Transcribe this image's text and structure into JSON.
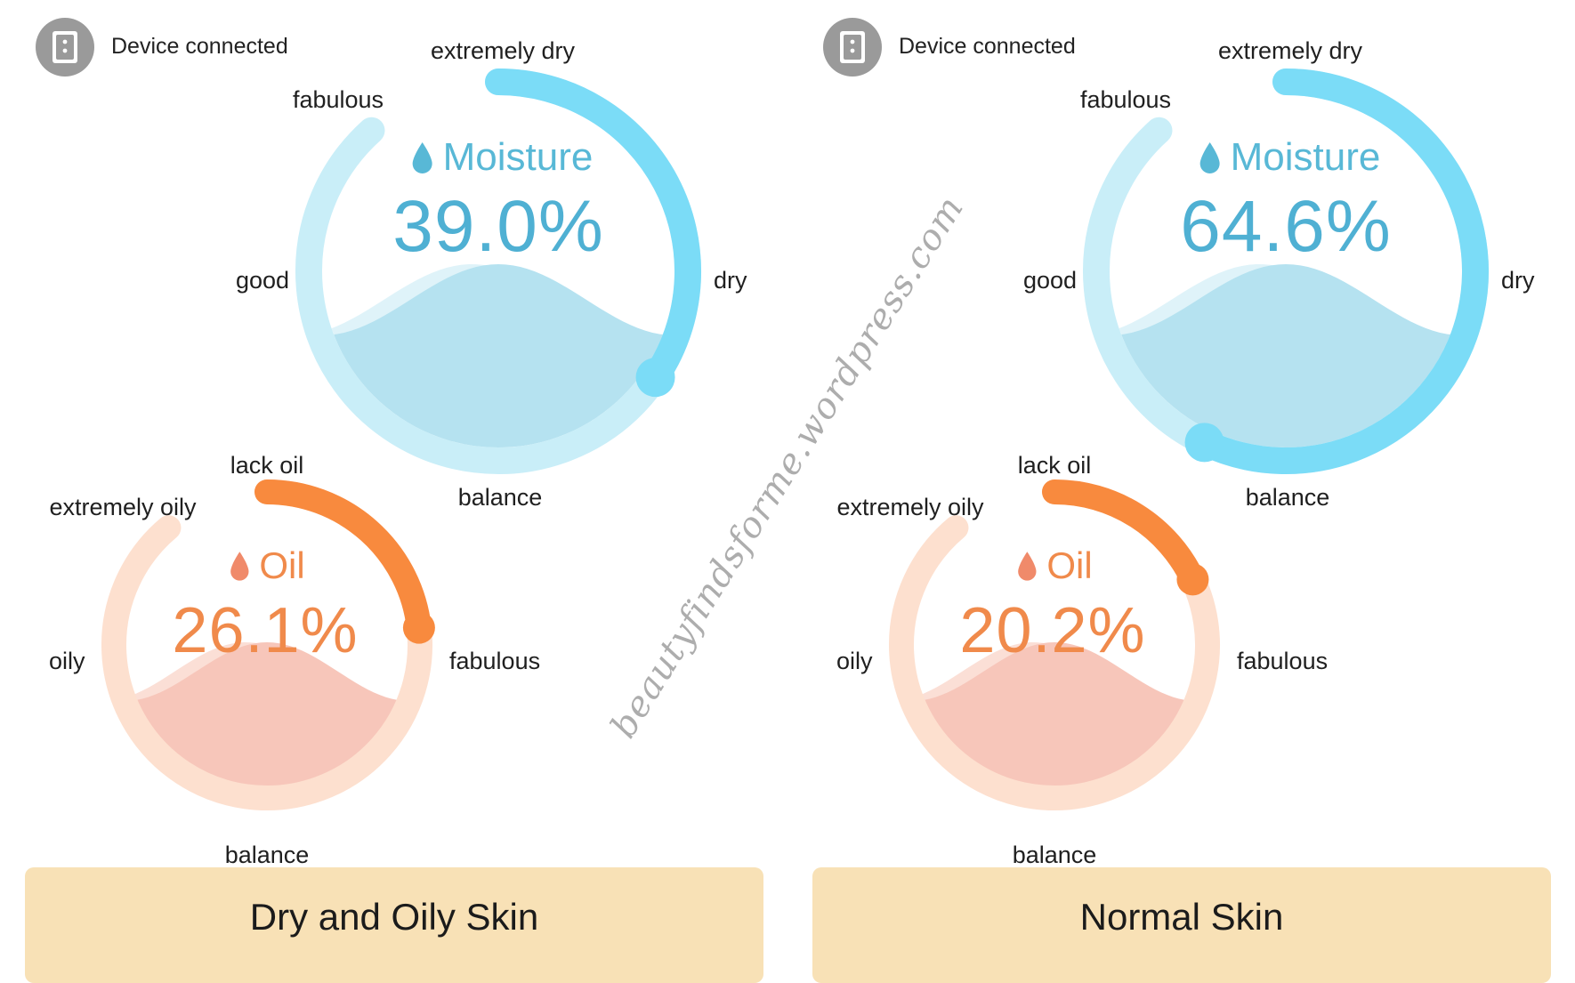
{
  "watermark": "beautyfindsforme.wordpress.com",
  "colors": {
    "moisture_track": "#c9eef8",
    "moisture_arc": "#7bdcf7",
    "moisture_fill": "#b5e2f0",
    "moisture_text": "#4fb0d3",
    "oil_track": "#fde0cf",
    "oil_arc": "#f88a3e",
    "oil_fill": "#f7c6ba",
    "oil_text": "#f08a4b",
    "caption_bg": "#f8e1b6"
  },
  "panels": [
    {
      "device_status": "Device connected",
      "moisture": {
        "title": "Moisture",
        "value": "39.0%",
        "percent": 39.0,
        "labels": {
          "top": "extremely dry",
          "top_left": "fabulous",
          "left": "good",
          "right": "dry",
          "bottom": "balance"
        }
      },
      "oil": {
        "title": "Oil",
        "value": "26.1%",
        "percent": 26.1,
        "labels": {
          "top": "lack oil",
          "top_left": "extremely oily",
          "left": "oily",
          "right": "fabulous",
          "bottom": "balance"
        }
      },
      "caption": "Dry and Oily Skin"
    },
    {
      "device_status": "Device connected",
      "moisture": {
        "title": "Moisture",
        "value": "64.6%",
        "percent": 64.6,
        "labels": {
          "top": "extremely dry",
          "top_left": "fabulous",
          "left": "good",
          "right": "dry",
          "bottom": "balance"
        }
      },
      "oil": {
        "title": "Oil",
        "value": "20.2%",
        "percent": 20.2,
        "labels": {
          "top": "lack oil",
          "top_left": "extremely oily",
          "left": "oily",
          "right": "fabulous",
          "bottom": "balance"
        }
      },
      "caption": "Normal Skin"
    }
  ]
}
